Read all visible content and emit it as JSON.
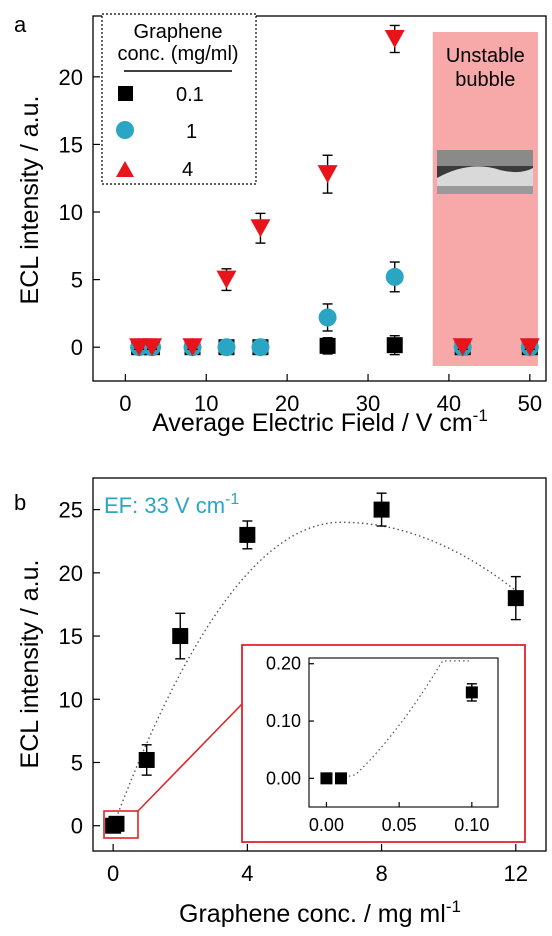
{
  "chart_data": [
    {
      "panel_label": "a",
      "type": "scatter",
      "xlabel": "Average Electric Field / V cm",
      "xlabel_sup": "-1",
      "ylabel": "ECL intensity / a.u.",
      "xlim": [
        -4,
        52
      ],
      "ylim": [
        -2.5,
        24.5
      ],
      "xticks": [
        0,
        10,
        20,
        30,
        40,
        50
      ],
      "yticks": [
        0,
        5,
        10,
        15,
        20
      ],
      "legend": {
        "title_line1": "Graphene",
        "title_line2": "conc. (mg/ml)",
        "placement": "top-left"
      },
      "shaded_region": {
        "x_range": [
          38,
          51
        ],
        "label_line1": "Unstable",
        "label_line2": "bubble",
        "color": "#f7a8a8"
      },
      "series": [
        {
          "name": "0.1",
          "marker": "square",
          "color": "#000000",
          "points": [
            {
              "x": 1.7,
              "y": 0,
              "err": 0.15
            },
            {
              "x": 3.3,
              "y": 0,
              "err": 0.15
            },
            {
              "x": 8.3,
              "y": 0,
              "err": 0.15
            },
            {
              "x": 12.5,
              "y": 0,
              "err": 0.15
            },
            {
              "x": 16.7,
              "y": 0,
              "err": 0.15
            },
            {
              "x": 25,
              "y": 0.1,
              "err": 0.6
            },
            {
              "x": 33.3,
              "y": 0.15,
              "err": 0.7
            },
            {
              "x": 41.7,
              "y": 0,
              "err": 0.15
            },
            {
              "x": 50,
              "y": 0,
              "err": 0.15
            }
          ]
        },
        {
          "name": "1",
          "marker": "circle",
          "color": "#2aa5c3",
          "points": [
            {
              "x": 1.7,
              "y": 0,
              "err": 0.15
            },
            {
              "x": 3.3,
              "y": 0,
              "err": 0.15
            },
            {
              "x": 8.3,
              "y": 0,
              "err": 0.15
            },
            {
              "x": 12.5,
              "y": 0,
              "err": 0.15
            },
            {
              "x": 16.7,
              "y": 0,
              "err": 0.15
            },
            {
              "x": 25,
              "y": 2.2,
              "err": 1.0
            },
            {
              "x": 33.3,
              "y": 5.2,
              "err": 1.1
            },
            {
              "x": 41.7,
              "y": 0,
              "err": 0.15
            },
            {
              "x": 50,
              "y": 0,
              "err": 0.15
            }
          ]
        },
        {
          "name": "4",
          "marker": "triangle",
          "color": "#e8141b",
          "points": [
            {
              "x": 1.7,
              "y": 0,
              "err": 0.15
            },
            {
              "x": 3.3,
              "y": 0,
              "err": 0.15
            },
            {
              "x": 8.3,
              "y": 0,
              "err": 0.15
            },
            {
              "x": 12.5,
              "y": 5.0,
              "err": 0.8
            },
            {
              "x": 16.7,
              "y": 8.8,
              "err": 1.1
            },
            {
              "x": 25,
              "y": 12.8,
              "err": 1.4
            },
            {
              "x": 33.3,
              "y": 22.8,
              "err": 1.0
            },
            {
              "x": 41.7,
              "y": 0,
              "err": 0.15
            },
            {
              "x": 50,
              "y": 0,
              "err": 0.15
            }
          ]
        }
      ]
    },
    {
      "panel_label": "b",
      "type": "scatter",
      "annotation": {
        "text": "EF: 33 V cm",
        "sup": "-1",
        "color": "#2aa5c3"
      },
      "xlabel": "Graphene conc. / mg ml",
      "xlabel_sup": "-1",
      "ylabel": "ECL intensity / a.u.",
      "xlim": [
        -0.6,
        12.9
      ],
      "ylim": [
        -2,
        27.5
      ],
      "xticks": [
        0,
        4,
        8,
        12
      ],
      "yticks": [
        0,
        5,
        10,
        15,
        20,
        25
      ],
      "trend": "dotted fit curve",
      "series": [
        {
          "name": "",
          "marker": "square",
          "color": "#000000",
          "points": [
            {
              "x": 0,
              "y": 0,
              "err": 0.2
            },
            {
              "x": 0.1,
              "y": 0.15,
              "err": 0.2
            },
            {
              "x": 1,
              "y": 5.2,
              "err": 1.2
            },
            {
              "x": 2,
              "y": 15,
              "err": 1.8
            },
            {
              "x": 4,
              "y": 23,
              "err": 1.1
            },
            {
              "x": 8,
              "y": 25,
              "err": 1.3
            },
            {
              "x": 12,
              "y": 18,
              "err": 1.7
            }
          ]
        }
      ],
      "inset": {
        "type": "scatter",
        "xlim": [
          -0.012,
          0.118
        ],
        "ylim": [
          -0.05,
          0.21
        ],
        "xticks": [
          "0.00",
          "0.05",
          "0.10"
        ],
        "yticks": [
          "0.00",
          "0.10",
          "0.20"
        ],
        "points": [
          {
            "x": 0,
            "y": 0,
            "err": 0.004
          },
          {
            "x": 0.01,
            "y": 0,
            "err": 0.004
          },
          {
            "x": 0.1,
            "y": 0.15,
            "err": 0.015
          }
        ]
      }
    }
  ]
}
